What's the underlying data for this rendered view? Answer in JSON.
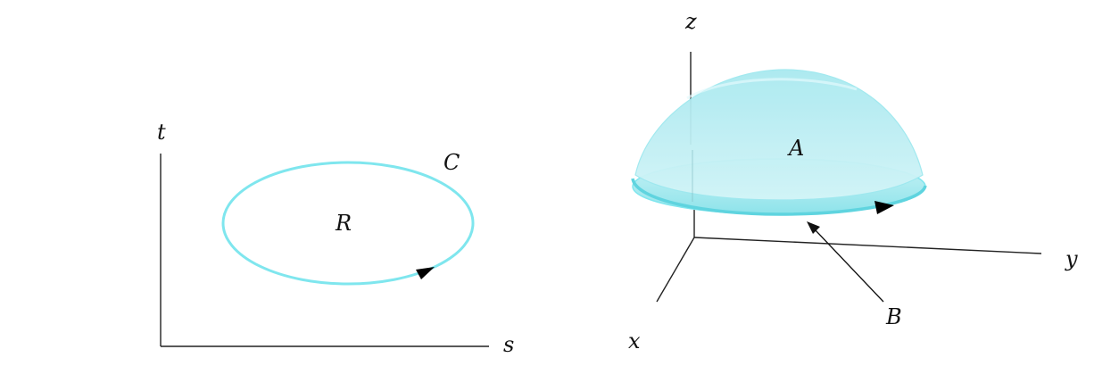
{
  "colors": {
    "accent": "#7fe6ee",
    "accent_dark": "#5fd4df",
    "dome_fill": "#bfeff4",
    "ink": "#111111",
    "axis": "#222222",
    "background": "#ffffff"
  },
  "left_panel": {
    "axis_vertical_label": "t",
    "axis_horizontal_label": "s",
    "curve_label": "C",
    "region_label": "R"
  },
  "right_panel": {
    "axis_z_label": "z",
    "axis_y_label": "y",
    "axis_x_label": "x",
    "surface_label": "A",
    "boundary_label": "B"
  }
}
